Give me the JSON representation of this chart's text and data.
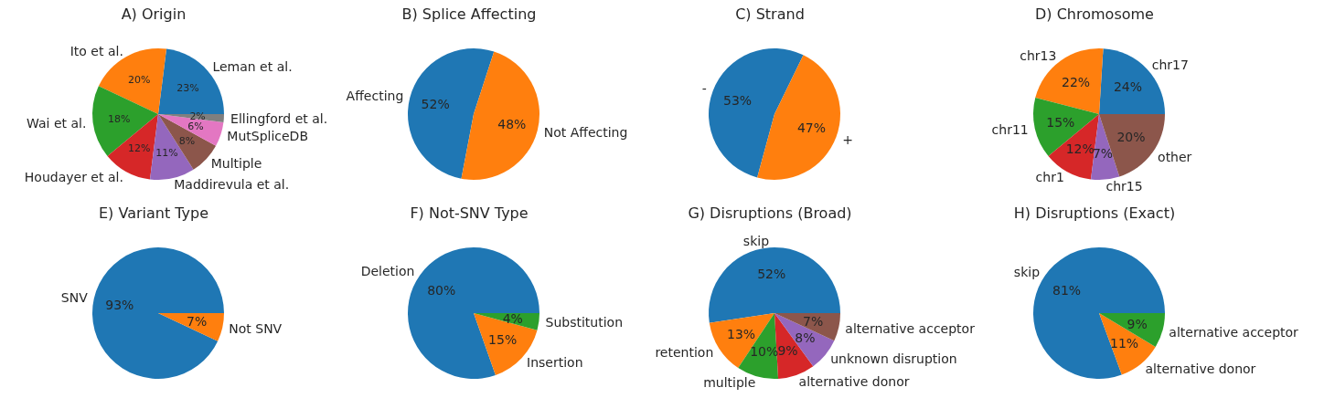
{
  "chart_data": [
    {
      "type": "pie",
      "title": "A) Origin",
      "categories": [
        "Leman et al.",
        "Ito et al.",
        "Wai et al.",
        "Houdayer et al.",
        "Maddirevula et al.",
        "Multiple",
        "MutSpliceDB",
        "Ellingford et al."
      ],
      "values": [
        23,
        20,
        18,
        12,
        11,
        8,
        6,
        2
      ],
      "colors": [
        "#1f77b4",
        "#ff7f0e",
        "#2ca02c",
        "#d62728",
        "#9467bd",
        "#8c564b",
        "#e377c2",
        "#7f7f7f"
      ],
      "value_labels": [
        "23%",
        "20%",
        "18%",
        "12%",
        "11%",
        "8%",
        "6%",
        "2%"
      ]
    },
    {
      "type": "pie",
      "title": "B) Splice Affecting",
      "categories": [
        "Affecting",
        "Not Affecting"
      ],
      "values": [
        52,
        48
      ],
      "colors": [
        "#1f77b4",
        "#ff7f0e"
      ],
      "value_labels": [
        "52%",
        "48%"
      ]
    },
    {
      "type": "pie",
      "title": "C) Strand",
      "categories": [
        "-",
        "+"
      ],
      "values": [
        53,
        47
      ],
      "colors": [
        "#1f77b4",
        "#ff7f0e"
      ],
      "value_labels": [
        "53%",
        "47%"
      ]
    },
    {
      "type": "pie",
      "title": "D) Chromosome",
      "categories": [
        "chr17",
        "chr13",
        "chr11",
        "chr1",
        "chr15",
        "other"
      ],
      "values": [
        24,
        22,
        15,
        12,
        7,
        20
      ],
      "colors": [
        "#1f77b4",
        "#ff7f0e",
        "#2ca02c",
        "#d62728",
        "#9467bd",
        "#8c564b"
      ],
      "value_labels": [
        "24%",
        "22%",
        "15%",
        "12%",
        "7%",
        "20%"
      ]
    },
    {
      "type": "pie",
      "title": "E) Variant Type",
      "categories": [
        "SNV",
        "Not SNV"
      ],
      "values": [
        93,
        7
      ],
      "colors": [
        "#1f77b4",
        "#ff7f0e"
      ],
      "value_labels": [
        "93%",
        "7%"
      ]
    },
    {
      "type": "pie",
      "title": "F) Not-SNV Type",
      "categories": [
        "Deletion",
        "Insertion",
        "Substitution"
      ],
      "values": [
        80.4,
        15.4,
        4.2
      ],
      "colors": [
        "#1f77b4",
        "#ff7f0e",
        "#2ca02c"
      ],
      "value_labels": [
        "80%",
        "15%",
        "4%"
      ]
    },
    {
      "type": "pie",
      "title": "G) Disruptions (Broad)",
      "categories": [
        "skip",
        "retention",
        "multiple",
        "alternative donor",
        "unknown disruption",
        "alternative acceptor"
      ],
      "values": [
        52.4,
        13.3,
        10.2,
        9.1,
        8.1,
        6.9
      ],
      "colors": [
        "#1f77b4",
        "#ff7f0e",
        "#2ca02c",
        "#d62728",
        "#9467bd",
        "#8c564b"
      ],
      "value_labels": [
        "52%",
        "13%",
        "10%",
        "9%",
        "8%",
        "7%"
      ]
    },
    {
      "type": "pie",
      "title": "H) Disruptions (Exact)",
      "categories": [
        "skip",
        "alternative donor",
        "alternative acceptor"
      ],
      "values": [
        80.6,
        10.8,
        8.6
      ],
      "colors": [
        "#1f77b4",
        "#ff7f0e",
        "#2ca02c"
      ],
      "value_labels": [
        "81%",
        "11%",
        "9%"
      ]
    }
  ]
}
